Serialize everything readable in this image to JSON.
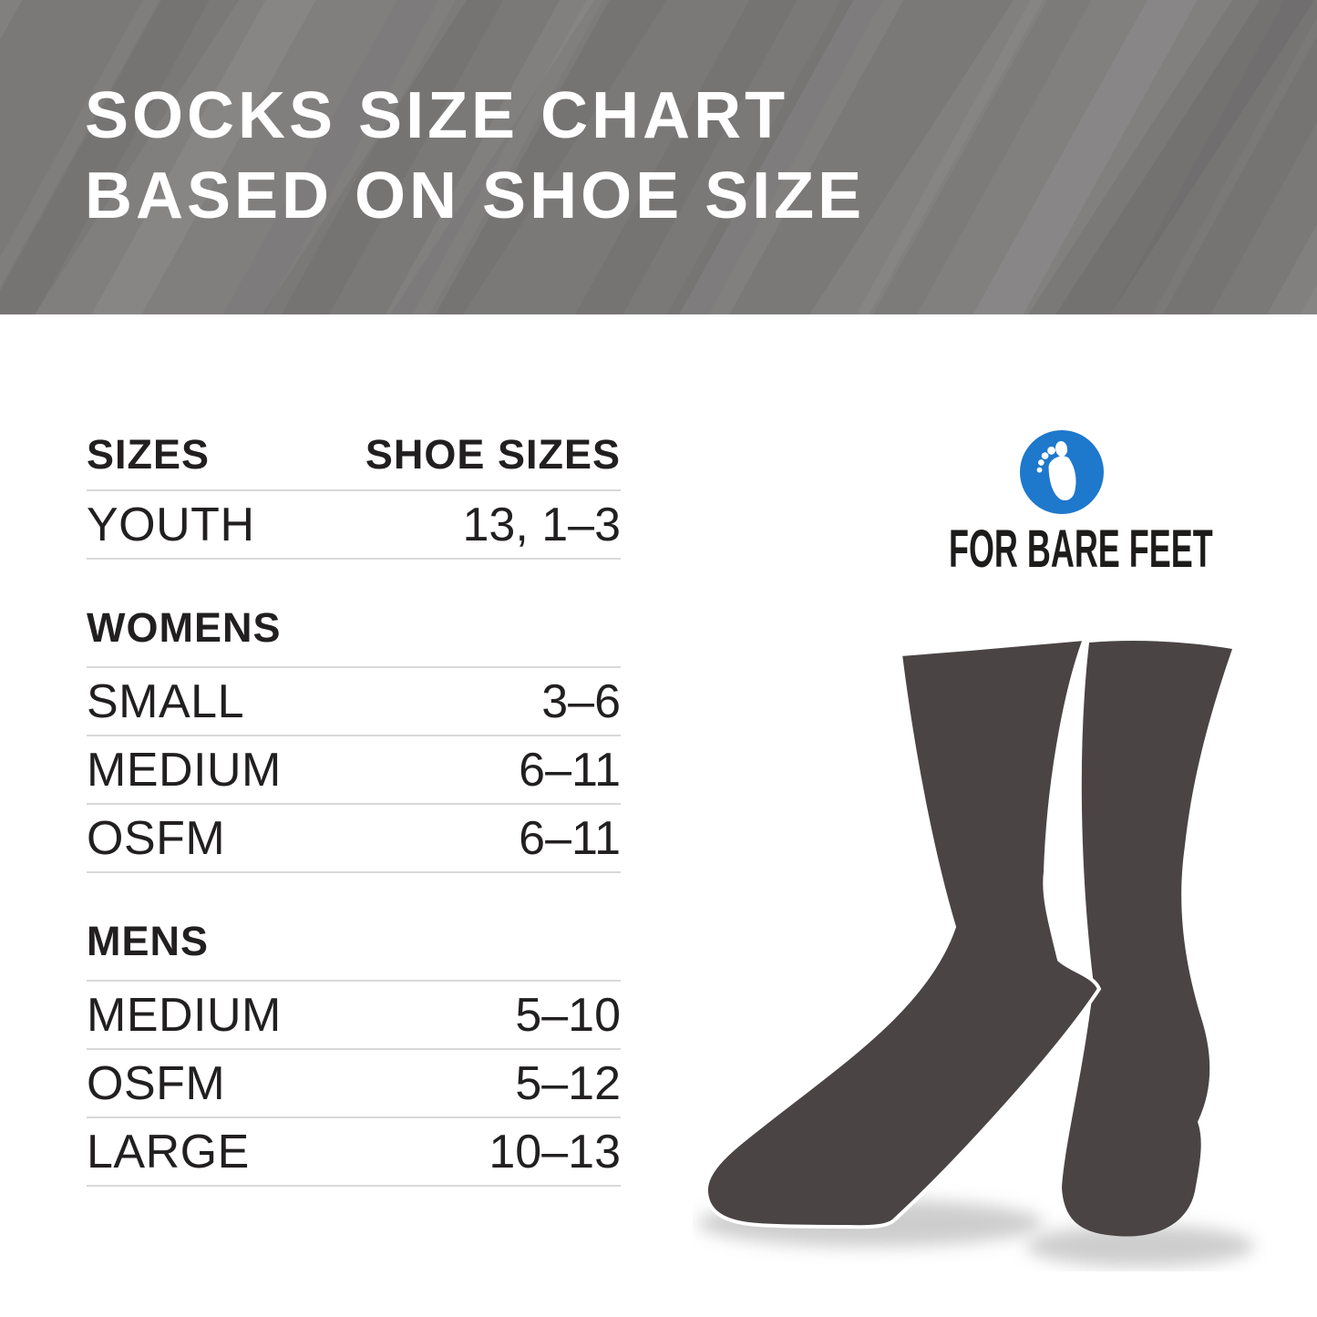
{
  "header": {
    "title_line1": "SOCKS SIZE CHART",
    "title_line2": "BASED ON SHOE SIZE"
  },
  "table": {
    "columns": [
      "SIZES",
      "SHOE SIZES"
    ],
    "sections": [
      {
        "header": null,
        "rows": [
          {
            "size": "YOUTH",
            "shoe_sizes": "13, 1–3"
          }
        ]
      },
      {
        "header": "WOMENS",
        "rows": [
          {
            "size": "SMALL",
            "shoe_sizes": "3–6"
          },
          {
            "size": "MEDIUM",
            "shoe_sizes": "6–11"
          },
          {
            "size": "OSFM",
            "shoe_sizes": "6–11"
          }
        ]
      },
      {
        "header": "MENS",
        "rows": [
          {
            "size": "MEDIUM",
            "shoe_sizes": "5–10"
          },
          {
            "size": "OSFM",
            "shoe_sizes": "5–12"
          },
          {
            "size": "LARGE",
            "shoe_sizes": "10–13"
          }
        ]
      }
    ]
  },
  "brand": {
    "name": "FOR BARE FEET",
    "icon": "footprint-icon"
  },
  "illustration": {
    "description": "pair of dark gray crew socks with soft floor shadows"
  },
  "colors": {
    "hero_bg": "#7b7878",
    "title_text": "#ffffff",
    "ink": "#221f20",
    "divider": "#d9d9d9",
    "accent_blue": "#1e78cc",
    "sock": "#4a4445",
    "shadow": "#bdbdbd"
  },
  "chart_data": {
    "type": "table",
    "title": "SOCKS SIZE CHART BASED ON SHOE SIZE",
    "columns": [
      "SIZES",
      "SHOE SIZES"
    ],
    "rows": [
      [
        "YOUTH",
        "13, 1–3"
      ],
      [
        "WOMENS",
        ""
      ],
      [
        "SMALL",
        "3–6"
      ],
      [
        "MEDIUM",
        "6–11"
      ],
      [
        "OSFM",
        "6–11"
      ],
      [
        "MENS",
        ""
      ],
      [
        "MEDIUM",
        "5–10"
      ],
      [
        "OSFM",
        "5–12"
      ],
      [
        "LARGE",
        "10–13"
      ]
    ]
  }
}
